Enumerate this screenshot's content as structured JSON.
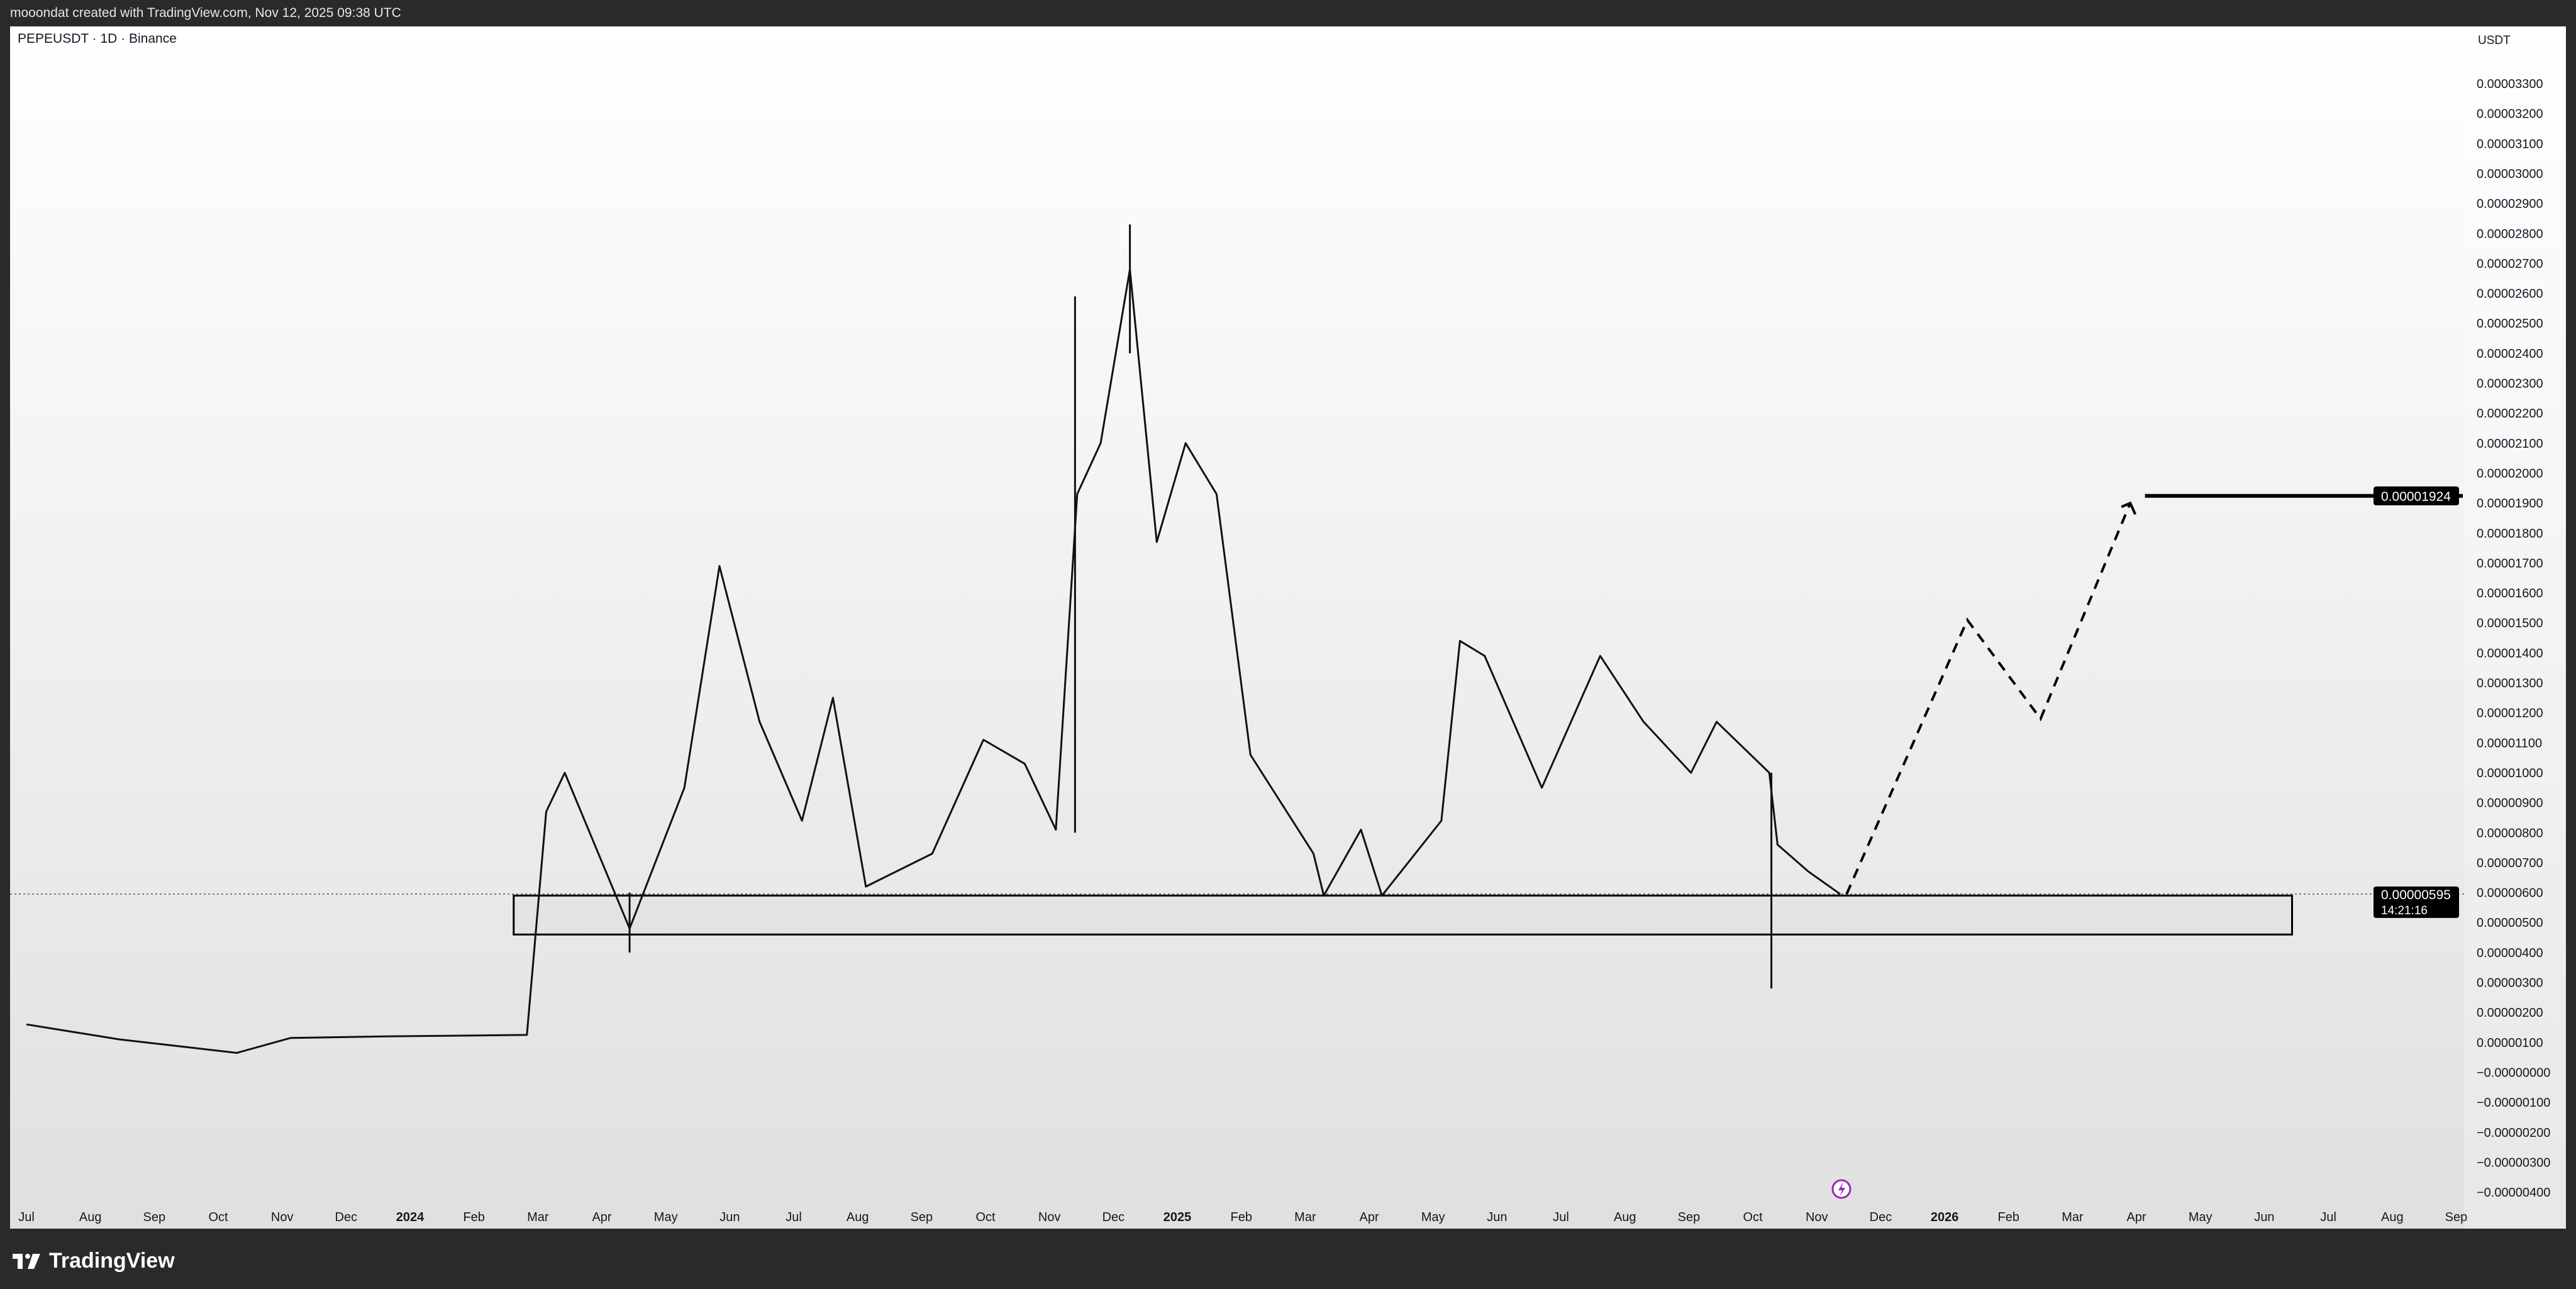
{
  "header": {
    "credit": "mooondat created with TradingView.com, Nov 12, 2025 09:38 UTC"
  },
  "chart": {
    "symbol": "PEPEUSDT · 1D · Binance",
    "currency": "USDT"
  },
  "footer": {
    "brand": "TradingView",
    "logo_icon": "tradingview-logo-icon"
  },
  "colors": {
    "candles": "#000000",
    "background_top": "#ffffff",
    "background_bottom": "#e0e0e0",
    "frame": "#2a2a2a",
    "event_icon": "#9c27b0"
  },
  "chart_data": {
    "type": "line",
    "title": "PEPEUSDT · 1D · Binance",
    "ylabel": "USDT",
    "ylim": [
      -4e-06,
      3.3e-05
    ],
    "grid": false,
    "xrange": [
      "2023-07-01",
      "2026-09-01"
    ],
    "x_tick_labels": [
      "Jul",
      "Aug",
      "Sep",
      "Oct",
      "Nov",
      "Dec",
      "2024",
      "Feb",
      "Mar",
      "Apr",
      "May",
      "Jun",
      "Jul",
      "Aug",
      "Sep",
      "Oct",
      "Nov",
      "Dec",
      "2025",
      "Feb",
      "Mar",
      "Apr",
      "May",
      "Jun",
      "Jul",
      "Aug",
      "Sep",
      "Oct",
      "Nov",
      "Dec",
      "2026",
      "Feb",
      "Mar",
      "Apr",
      "May",
      "Jun",
      "Jul",
      "Aug",
      "Sep"
    ],
    "y_tick_labels": [
      "0.00003300",
      "0.00003200",
      "0.00003100",
      "0.00003000",
      "0.00002900",
      "0.00002800",
      "0.00002700",
      "0.00002600",
      "0.00002500",
      "0.00002400",
      "0.00002300",
      "0.00002200",
      "0.00002100",
      "0.00002000",
      "0.00001900",
      "0.00001800",
      "0.00001700",
      "0.00001600",
      "0.00001500",
      "0.00001400",
      "0.00001300",
      "0.00001200",
      "0.00001100",
      "0.00001000",
      "0.00000900",
      "0.00000800",
      "0.00000700",
      "0.00000600",
      "0.00000500",
      "0.00000400",
      "0.00000300",
      "0.00000200",
      "0.00000100",
      "−0.00000000",
      "−0.00000100",
      "−0.00000200",
      "−0.00000300",
      "−0.00000400"
    ],
    "price_series": [
      [
        "2023-07-01",
        1.6e-06
      ],
      [
        "2023-08-15",
        1.1e-06
      ],
      [
        "2023-10-10",
        6.5e-07
      ],
      [
        "2023-11-05",
        1.15e-06
      ],
      [
        "2023-12-20",
        1.2e-06
      ],
      [
        "2024-02-25",
        1.25e-06
      ],
      [
        "2024-03-05",
        8.7e-06
      ],
      [
        "2024-03-14",
        1e-05
      ],
      [
        "2024-04-14",
        4.8e-06
      ],
      [
        "2024-05-10",
        9.5e-06
      ],
      [
        "2024-05-27",
        1.69e-05
      ],
      [
        "2024-06-15",
        1.17e-05
      ],
      [
        "2024-07-05",
        8.4e-06
      ],
      [
        "2024-07-20",
        1.25e-05
      ],
      [
        "2024-08-05",
        6.2e-06
      ],
      [
        "2024-09-06",
        7.3e-06
      ],
      [
        "2024-09-30",
        1.11e-05
      ],
      [
        "2024-10-20",
        1.03e-05
      ],
      [
        "2024-11-04",
        8.1e-06
      ],
      [
        "2024-11-14",
        1.93e-05
      ],
      [
        "2024-11-25",
        2.1e-05
      ],
      [
        "2024-12-09",
        2.68e-05
      ],
      [
        "2024-12-22",
        1.77e-05
      ],
      [
        "2025-01-05",
        2.1e-05
      ],
      [
        "2025-01-20",
        1.93e-05
      ],
      [
        "2025-02-05",
        1.06e-05
      ],
      [
        "2025-03-05",
        7.3e-06
      ],
      [
        "2025-03-10",
        5.9e-06
      ],
      [
        "2025-03-28",
        8.1e-06
      ],
      [
        "2025-04-07",
        5.9e-06
      ],
      [
        "2025-05-05",
        8.4e-06
      ],
      [
        "2025-05-14",
        1.44e-05
      ],
      [
        "2025-05-26",
        1.39e-05
      ],
      [
        "2025-06-22",
        9.5e-06
      ],
      [
        "2025-07-20",
        1.39e-05
      ],
      [
        "2025-08-10",
        1.17e-05
      ],
      [
        "2025-09-02",
        1e-05
      ],
      [
        "2025-09-14",
        1.17e-05
      ],
      [
        "2025-10-09",
        1e-05
      ],
      [
        "2025-10-13",
        7.6e-06
      ],
      [
        "2025-10-28",
        6.7e-06
      ],
      [
        "2025-11-12",
        5.95e-06
      ]
    ],
    "wicks": [
      [
        "2024-04-14",
        4e-06,
        6e-06
      ],
      [
        "2024-11-13",
        2.59e-05,
        8e-06
      ],
      [
        "2024-12-09",
        2.83e-05,
        2.4e-05
      ],
      [
        "2025-10-10",
        2.8e-06,
        1e-05
      ]
    ],
    "projection_path": [
      [
        "2025-11-15",
        5.95e-06
      ],
      [
        "2026-01-12",
        1.51e-05
      ],
      [
        "2026-02-15",
        1.18e-05
      ],
      [
        "2026-03-29",
        1.9e-05
      ]
    ],
    "horizontal_line": {
      "price": 1.924e-05,
      "label": "0.00001924",
      "from": "2026-04-05",
      "to": "2026-09-05"
    },
    "support_zone": {
      "from": "2024-02-19",
      "to": "2026-06-14",
      "top": 5.9e-06,
      "bottom": 4.6e-06
    },
    "last_price": {
      "price": 5.95e-06,
      "label": "0.00000595",
      "countdown": "14:21:16"
    }
  }
}
